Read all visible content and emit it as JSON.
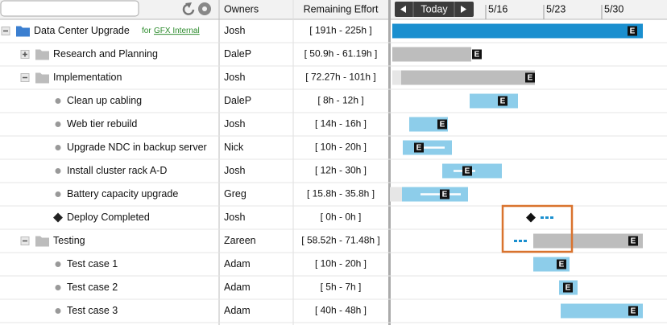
{
  "columns": {
    "owners": "Owners",
    "effort": "Remaining Effort"
  },
  "timeline": {
    "today": "Today",
    "dates": [
      "5/16",
      "5/23",
      "5/30"
    ],
    "marker": "E"
  },
  "rows": [
    {
      "name": "Data Center Upgrade",
      "tag": "for",
      "link": "GFX Internal",
      "owner": "Josh",
      "effort": "[ 191h - 225h ]"
    },
    {
      "name": "Research and Planning",
      "owner": "DaleP",
      "effort": "[ 50.9h - 61.19h ]"
    },
    {
      "name": "Implementation",
      "owner": "Josh",
      "effort": "[ 72.27h - 101h ]"
    },
    {
      "name": "Clean up cabling",
      "owner": "DaleP",
      "effort": "[ 8h - 12h ]"
    },
    {
      "name": "Web tier rebuild",
      "owner": "Josh",
      "effort": "[ 14h - 16h ]"
    },
    {
      "name": "Upgrade NDC in backup server",
      "owner": "Nick",
      "effort": "[ 10h - 20h ]"
    },
    {
      "name": "Install cluster rack A-D",
      "owner": "Josh",
      "effort": "[ 12h - 30h ]"
    },
    {
      "name": "Battery capacity upgrade",
      "owner": "Greg",
      "effort": "[ 15.8h - 35.8h ]"
    },
    {
      "name": "Deploy Completed",
      "owner": "Josh",
      "effort": "[ 0h - 0h ]"
    },
    {
      "name": "Testing",
      "owner": "Zareen",
      "effort": "[ 58.52h - 71.48h ]"
    },
    {
      "name": "Test case 1",
      "owner": "Adam",
      "effort": "[ 10h - 20h ]"
    },
    {
      "name": "Test case 2",
      "owner": "Adam",
      "effort": "[ 5h - 7h ]"
    },
    {
      "name": "Test case 3",
      "owner": "Adam",
      "effort": "[ 40h - 48h ]"
    }
  ]
}
